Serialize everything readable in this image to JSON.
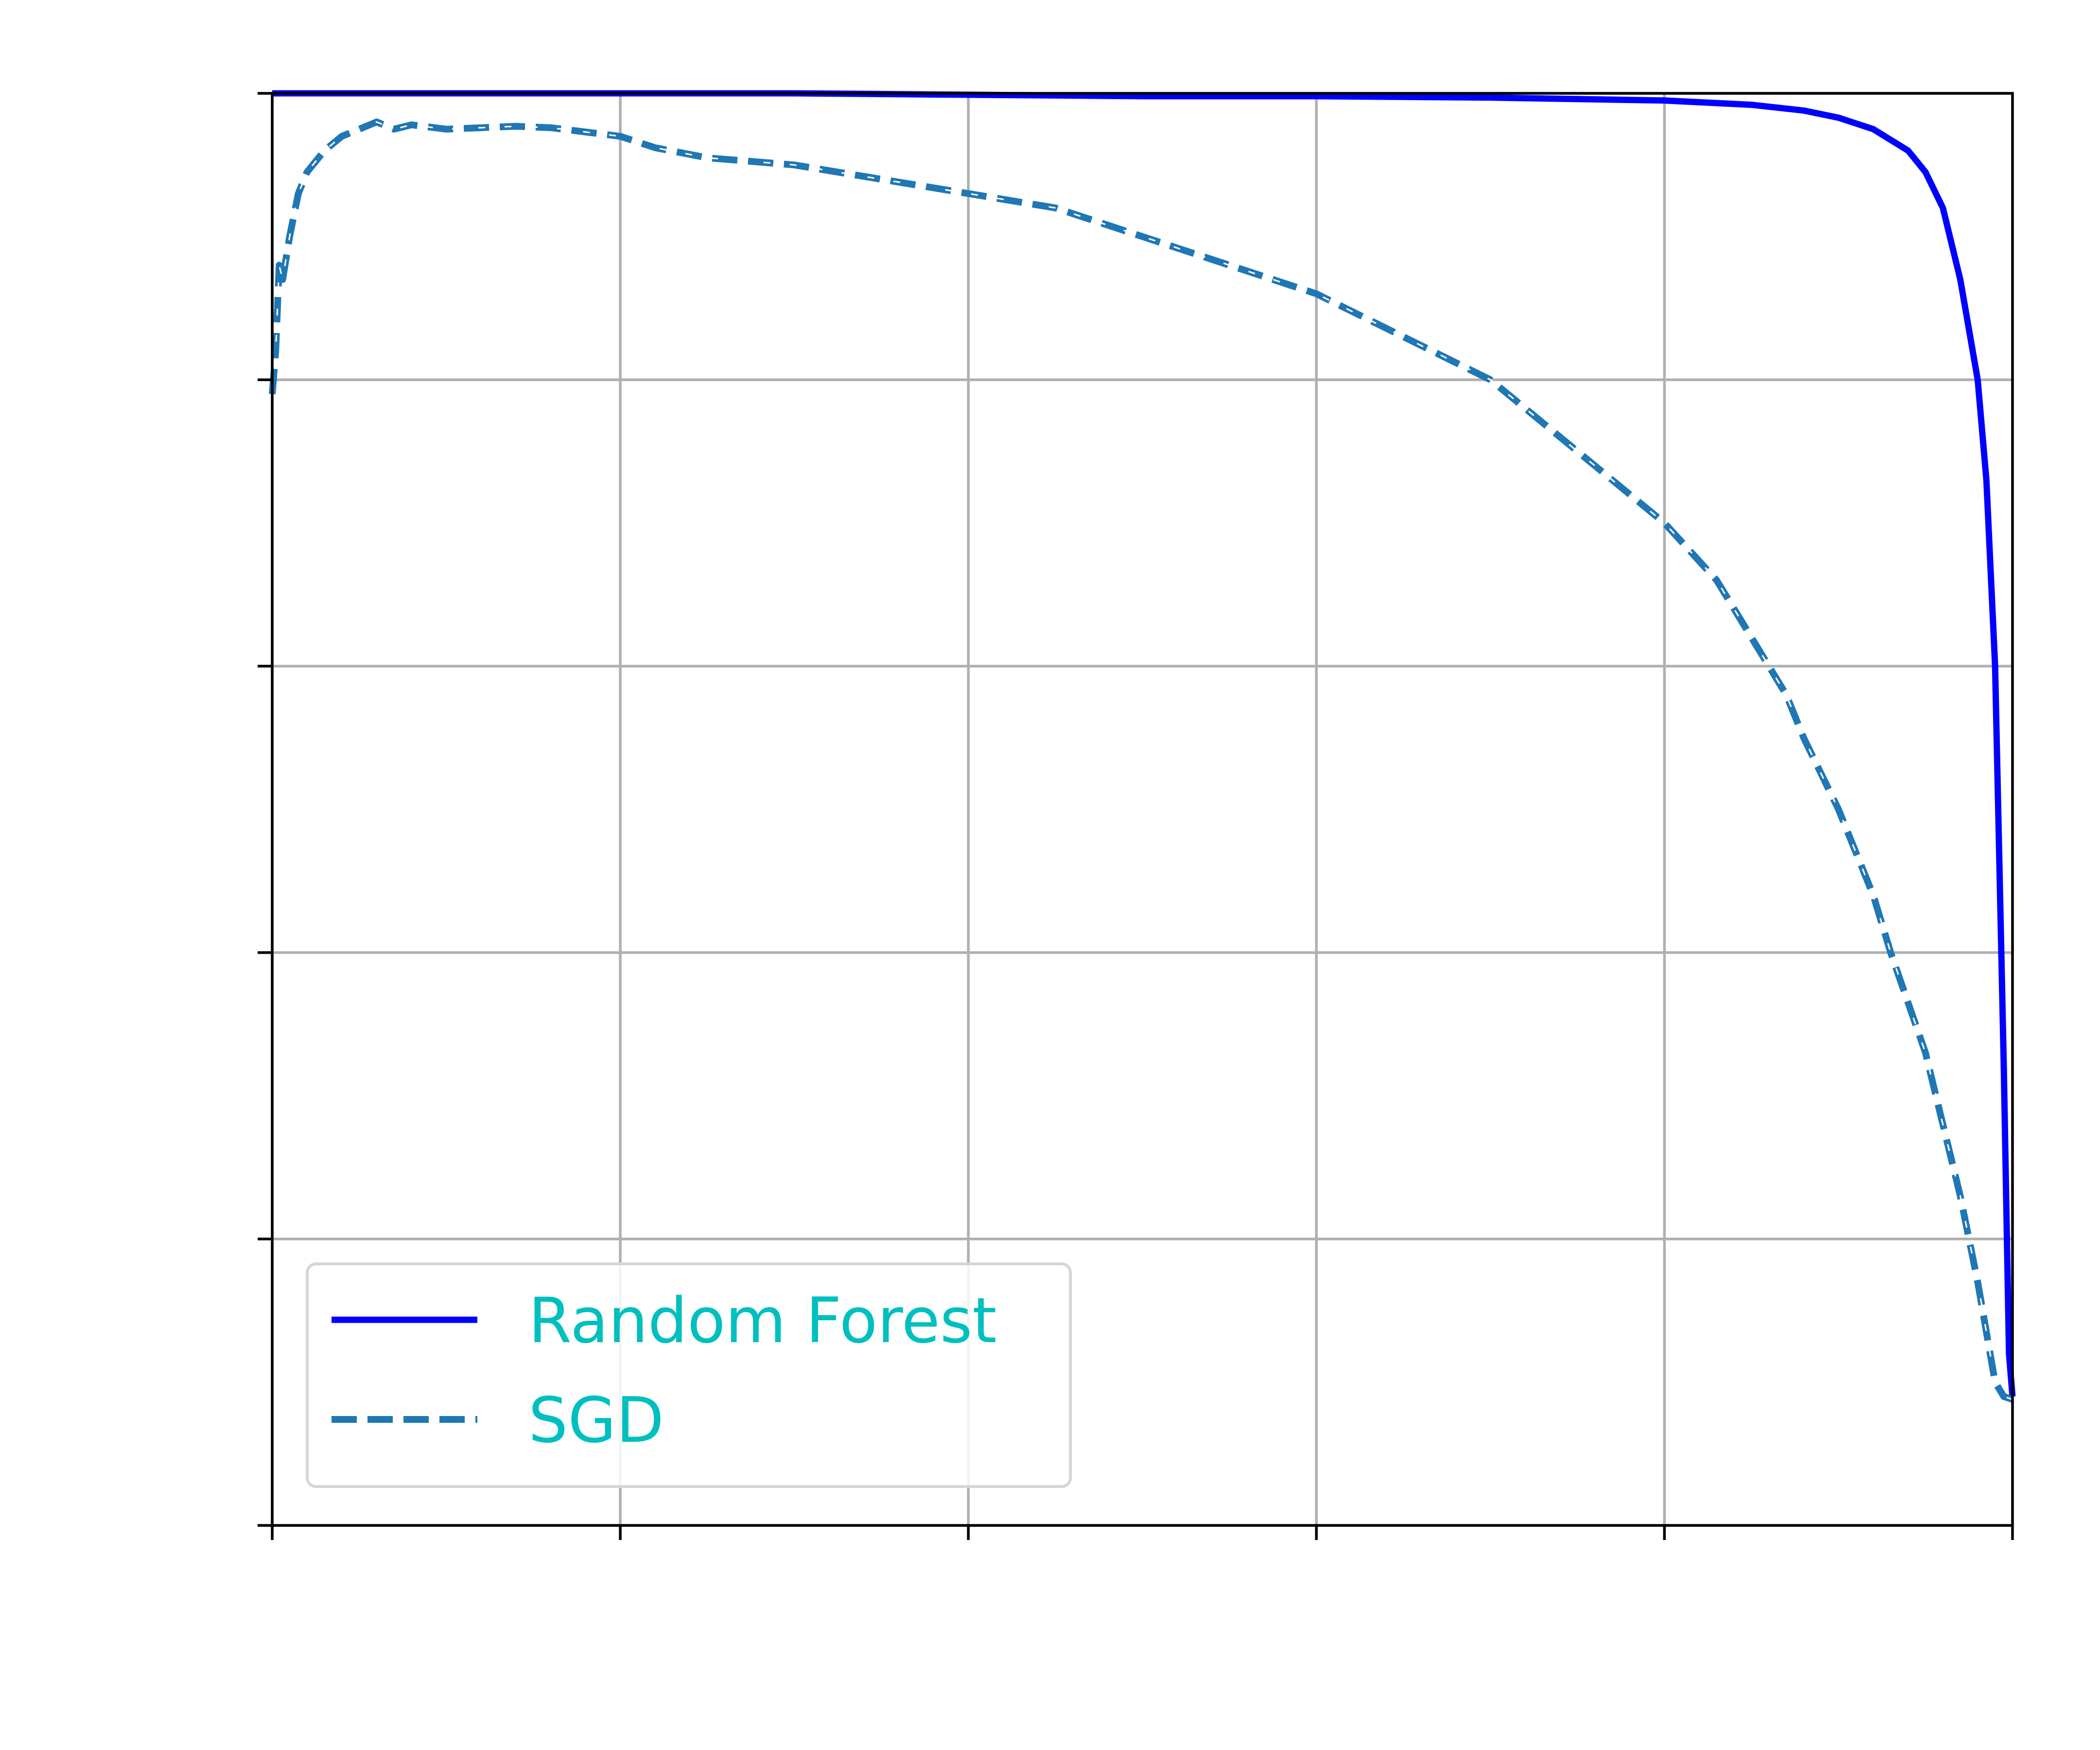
{
  "chart_data": {
    "type": "line",
    "title": "",
    "xlabel": "",
    "ylabel": "",
    "xlim": [
      0,
      1
    ],
    "ylim": [
      0,
      1
    ],
    "x_ticks": [
      0,
      0.2,
      0.4,
      0.6,
      0.8,
      1.0
    ],
    "y_ticks": [
      0,
      0.2,
      0.4,
      0.6,
      0.8,
      1.0
    ],
    "tick_labels_visible": false,
    "grid": true,
    "legend": {
      "position": "lower-left",
      "text_color": "#00bfbf"
    },
    "series": [
      {
        "name": "Random Forest",
        "style": "solid",
        "color": "#0000ff",
        "x": [
          0.0,
          0.1,
          0.2,
          0.3,
          0.4,
          0.5,
          0.6,
          0.7,
          0.75,
          0.8,
          0.85,
          0.88,
          0.9,
          0.92,
          0.94,
          0.95,
          0.96,
          0.97,
          0.98,
          0.985,
          0.99,
          0.995,
          0.998,
          1.0
        ],
        "y": [
          1.0,
          1.0,
          1.0,
          1.0,
          0.999,
          0.998,
          0.998,
          0.997,
          0.996,
          0.995,
          0.992,
          0.988,
          0.983,
          0.975,
          0.96,
          0.945,
          0.92,
          0.87,
          0.8,
          0.73,
          0.6,
          0.32,
          0.12,
          0.09
        ]
      },
      {
        "name": "SGD",
        "style": "dashed",
        "color": "#1f77b4",
        "x": [
          0.0,
          0.002,
          0.004,
          0.006,
          0.01,
          0.015,
          0.02,
          0.03,
          0.04,
          0.05,
          0.06,
          0.07,
          0.08,
          0.1,
          0.12,
          0.14,
          0.16,
          0.18,
          0.2,
          0.22,
          0.25,
          0.3,
          0.35,
          0.4,
          0.45,
          0.5,
          0.55,
          0.6,
          0.65,
          0.7,
          0.72,
          0.75,
          0.78,
          0.8,
          0.83,
          0.85,
          0.87,
          0.88,
          0.9,
          0.92,
          0.93,
          0.95,
          0.96,
          0.97,
          0.98,
          0.99,
          0.995,
          1.0
        ],
        "y": [
          0.79,
          0.82,
          0.88,
          0.87,
          0.9,
          0.93,
          0.945,
          0.96,
          0.97,
          0.975,
          0.98,
          0.975,
          0.978,
          0.975,
          0.976,
          0.977,
          0.976,
          0.973,
          0.97,
          0.962,
          0.955,
          0.95,
          0.94,
          0.93,
          0.92,
          0.9,
          0.88,
          0.86,
          0.83,
          0.8,
          0.78,
          0.75,
          0.72,
          0.7,
          0.66,
          0.62,
          0.58,
          0.55,
          0.5,
          0.44,
          0.4,
          0.33,
          0.28,
          0.23,
          0.17,
          0.1,
          0.09,
          0.088
        ]
      }
    ]
  }
}
